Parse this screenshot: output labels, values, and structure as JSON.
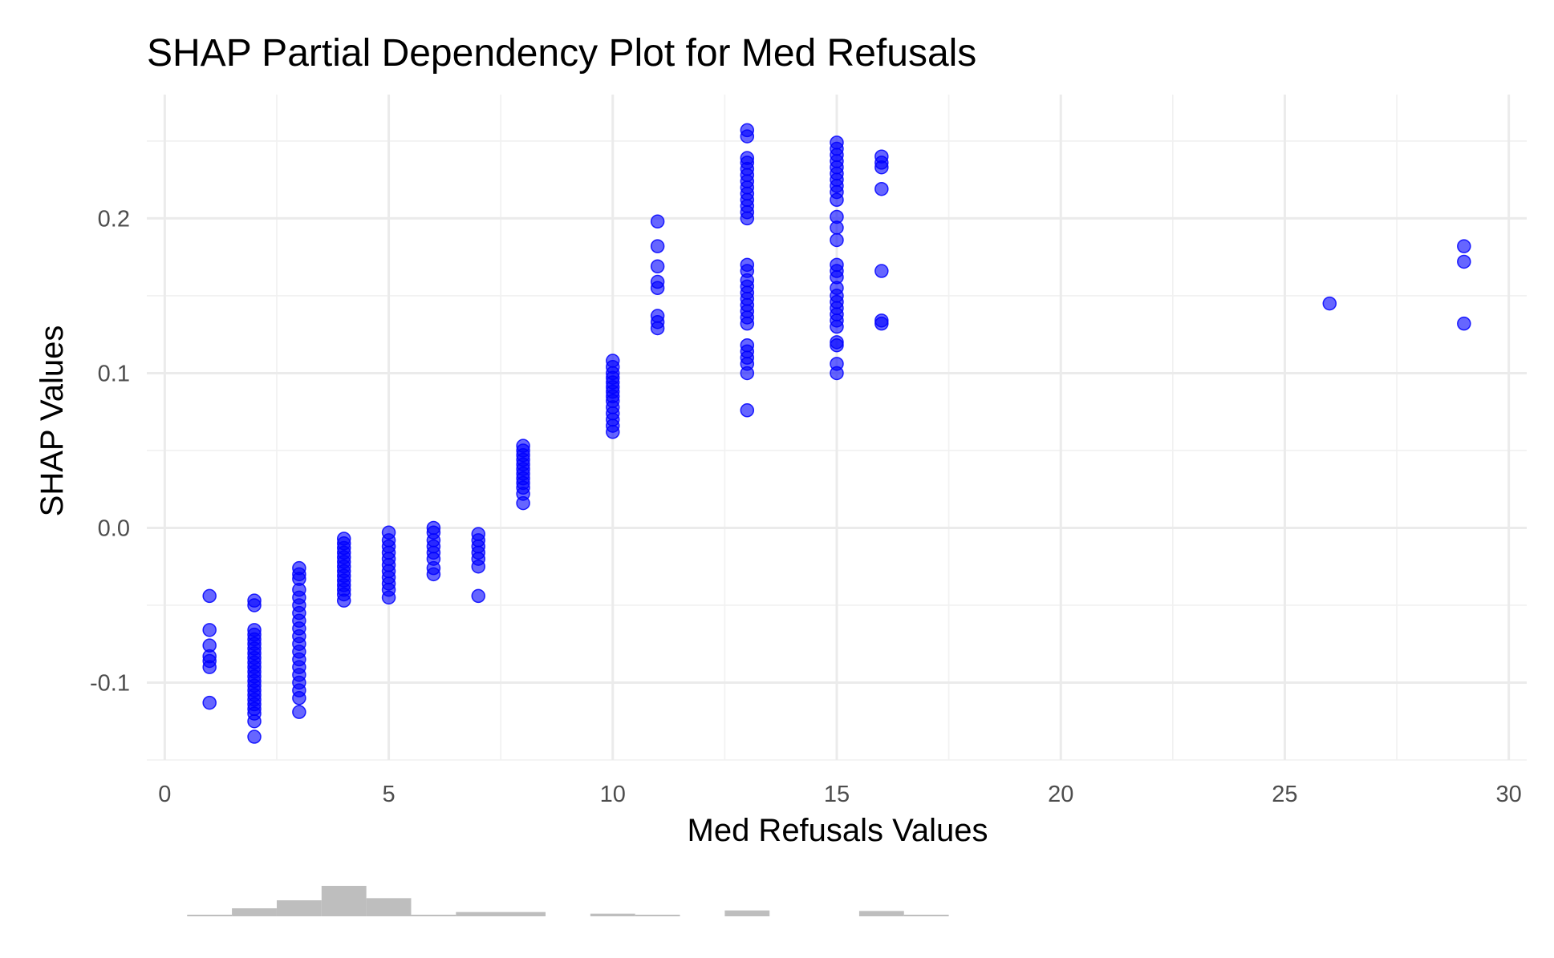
{
  "chart_data": {
    "type": "scatter",
    "title": "SHAP Partial Dependency Plot for Med Refusals",
    "xlabel": "Med Refusals Values",
    "ylabel": "SHAP Values",
    "xlim": [
      -0.4,
      30.4
    ],
    "ylim": [
      -0.15,
      0.28
    ],
    "x_ticks": [
      0,
      5,
      10,
      15,
      20,
      25,
      30
    ],
    "x_tick_labels": [
      "0",
      "5",
      "10",
      "15",
      "20",
      "25",
      "30"
    ],
    "y_ticks": [
      -0.1,
      0.0,
      0.1,
      0.2
    ],
    "y_tick_labels": [
      "-0.1",
      "0.0",
      "0.1",
      "0.2"
    ],
    "grid": true,
    "point_color": "#0000ff",
    "point_opacity": 0.6,
    "histogram_color": "#bebebe",
    "points": [
      {
        "x": 1,
        "y": [
          -0.044,
          -0.066,
          -0.076,
          -0.083,
          -0.086,
          -0.09,
          -0.113
        ]
      },
      {
        "x": 2,
        "y": [
          -0.047,
          -0.05,
          -0.066,
          -0.069,
          -0.072,
          -0.075,
          -0.078,
          -0.081,
          -0.084,
          -0.087,
          -0.09,
          -0.093,
          -0.096,
          -0.099,
          -0.102,
          -0.105,
          -0.108,
          -0.111,
          -0.114,
          -0.117,
          -0.12,
          -0.125,
          -0.135
        ]
      },
      {
        "x": 3,
        "y": [
          -0.026,
          -0.03,
          -0.033,
          -0.04,
          -0.045,
          -0.05,
          -0.055,
          -0.06,
          -0.065,
          -0.07,
          -0.075,
          -0.08,
          -0.085,
          -0.09,
          -0.095,
          -0.1,
          -0.105,
          -0.11,
          -0.119
        ]
      },
      {
        "x": 4,
        "y": [
          -0.007,
          -0.01,
          -0.013,
          -0.016,
          -0.019,
          -0.022,
          -0.025,
          -0.028,
          -0.031,
          -0.034,
          -0.037,
          -0.04,
          -0.043,
          -0.047
        ]
      },
      {
        "x": 5,
        "y": [
          -0.003,
          -0.008,
          -0.012,
          -0.016,
          -0.02,
          -0.024,
          -0.028,
          -0.032,
          -0.036,
          -0.04,
          -0.045
        ]
      },
      {
        "x": 6,
        "y": [
          0.0,
          -0.003,
          -0.008,
          -0.012,
          -0.016,
          -0.02,
          -0.026,
          -0.03
        ]
      },
      {
        "x": 7,
        "y": [
          -0.004,
          -0.008,
          -0.012,
          -0.016,
          -0.02,
          -0.025,
          -0.044
        ]
      },
      {
        "x": 8,
        "y": [
          0.053,
          0.05,
          0.047,
          0.044,
          0.041,
          0.038,
          0.035,
          0.032,
          0.029,
          0.026,
          0.022,
          0.016
        ]
      },
      {
        "x": 10,
        "y": [
          0.108,
          0.104,
          0.1,
          0.097,
          0.094,
          0.091,
          0.088,
          0.085,
          0.082,
          0.078,
          0.074,
          0.07,
          0.066,
          0.062
        ]
      },
      {
        "x": 11,
        "y": [
          0.198,
          0.182,
          0.169,
          0.159,
          0.155,
          0.137,
          0.133,
          0.129
        ]
      },
      {
        "x": 13,
        "y": [
          0.257,
          0.253,
          0.239,
          0.236,
          0.232,
          0.228,
          0.224,
          0.22,
          0.216,
          0.212,
          0.208,
          0.204,
          0.2,
          0.17,
          0.166,
          0.16,
          0.156,
          0.152,
          0.148,
          0.144,
          0.14,
          0.136,
          0.132,
          0.118,
          0.114,
          0.11,
          0.106,
          0.1,
          0.076
        ]
      },
      {
        "x": 15,
        "y": [
          0.249,
          0.245,
          0.241,
          0.237,
          0.233,
          0.229,
          0.225,
          0.221,
          0.217,
          0.212,
          0.201,
          0.194,
          0.186,
          0.17,
          0.166,
          0.162,
          0.155,
          0.15,
          0.146,
          0.142,
          0.138,
          0.134,
          0.13,
          0.12,
          0.118,
          0.106,
          0.1
        ]
      },
      {
        "x": 16,
        "y": [
          0.24,
          0.236,
          0.233,
          0.219,
          0.166,
          0.134,
          0.132
        ]
      },
      {
        "x": 26,
        "y": [
          0.145
        ]
      },
      {
        "x": 29,
        "y": [
          0.182,
          0.172,
          0.132
        ]
      }
    ],
    "histogram": {
      "bin_width": 1,
      "bins": [
        {
          "x0": 0.5,
          "x1": 1.5,
          "count": 1
        },
        {
          "x0": 1.5,
          "x1": 2.5,
          "count": 15
        },
        {
          "x0": 2.5,
          "x1": 3.5,
          "count": 30
        },
        {
          "x0": 3.5,
          "x1": 4.5,
          "count": 57
        },
        {
          "x0": 4.5,
          "x1": 5.5,
          "count": 34
        },
        {
          "x0": 5.5,
          "x1": 6.5,
          "count": 3
        },
        {
          "x0": 6.5,
          "x1": 8.5,
          "count": 8
        },
        {
          "x0": 9.5,
          "x1": 10.5,
          "count": 5
        },
        {
          "x0": 10.5,
          "x1": 11.5,
          "count": 2
        },
        {
          "x0": 12.5,
          "x1": 13.5,
          "count": 11
        },
        {
          "x0": 15.5,
          "x1": 16.5,
          "count": 10
        },
        {
          "x0": 16.5,
          "x1": 17.5,
          "count": 1
        }
      ]
    }
  }
}
